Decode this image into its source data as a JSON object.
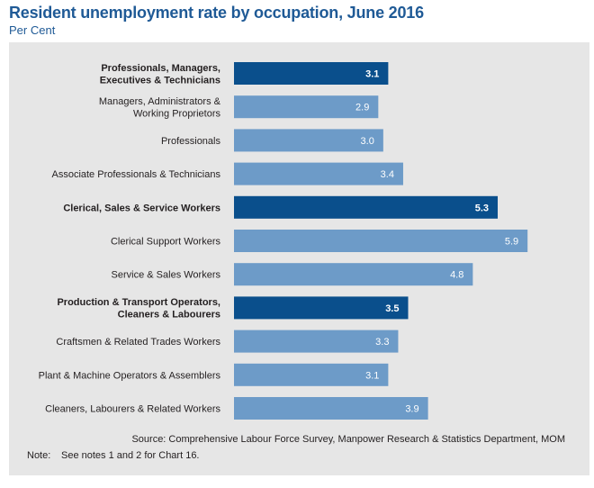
{
  "title": "Resident unemployment rate by occupation, June 2016",
  "subtitle": "Per Cent",
  "colors": {
    "group_bar": "#0a4f8c",
    "sub_bar": "#6d9bc8",
    "title": "#1f5a96",
    "panel": "#e6e6e6"
  },
  "chart_data": {
    "type": "bar",
    "orientation": "horizontal",
    "categories": [
      "Professionals, Managers, Executives & Technicians",
      "Managers, Administrators & Working Proprietors",
      "Professionals",
      "Associate Professionals & Technicians",
      "Clerical, Sales & Service Workers",
      "Clerical Support Workers",
      "Service & Sales Workers",
      "Production & Transport Operators, Cleaners & Labourers",
      "Craftsmen & Related Trades Workers",
      "Plant & Machine Operators & Assemblers",
      "Cleaners, Labourers & Related Workers"
    ],
    "category_lines": [
      [
        "Professionals, Managers,",
        "Executives & Technicians"
      ],
      [
        "Managers, Administrators &",
        "Working Proprietors"
      ],
      [
        "Professionals"
      ],
      [
        "Associate Professionals & Technicians"
      ],
      [
        "Clerical, Sales & Service Workers"
      ],
      [
        "Clerical Support Workers"
      ],
      [
        "Service & Sales Workers"
      ],
      [
        "Production & Transport Operators,",
        "Cleaners & Labourers"
      ],
      [
        "Craftsmen & Related Trades Workers"
      ],
      [
        "Plant & Machine Operators & Assemblers"
      ],
      [
        "Cleaners, Labourers & Related Workers"
      ]
    ],
    "values": [
      3.1,
      2.9,
      3.0,
      3.4,
      5.3,
      5.9,
      4.8,
      3.5,
      3.3,
      3.1,
      3.9
    ],
    "value_labels": [
      "3.1",
      "2.9",
      "3.0",
      "3.4",
      "5.3",
      "5.9",
      "4.8",
      "3.5",
      "3.3",
      "3.1",
      "3.9"
    ],
    "is_group_total": [
      true,
      false,
      false,
      false,
      true,
      false,
      false,
      true,
      false,
      false,
      false
    ],
    "xlim": [
      0,
      6.15
    ],
    "grid": false,
    "legend": "none"
  },
  "footer": {
    "source": "Source: Comprehensive Labour Force Survey, Manpower Research & Statistics Department, MOM",
    "note_label": "Note:",
    "note_text": "See notes 1 and 2 for Chart 16."
  }
}
